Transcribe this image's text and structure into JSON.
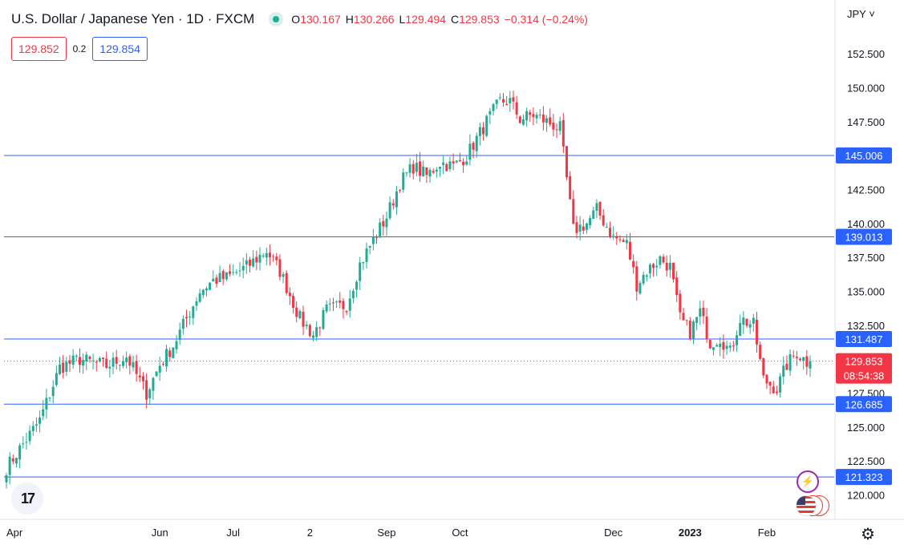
{
  "header": {
    "title": "U.S. Dollar / Japanese Yen · 1D · FXCM",
    "ohlc": [
      {
        "k": "O",
        "v": "130.167"
      },
      {
        "k": "H",
        "v": "130.266"
      },
      {
        "k": "L",
        "v": "129.494"
      },
      {
        "k": "C",
        "v": "129.853"
      },
      {
        "k": "",
        "v": "−0.314 (−0.24%)"
      }
    ]
  },
  "quotes": {
    "sell": "129.852",
    "spread": "0.2",
    "buy": "129.854"
  },
  "currency_label": "JPY ˅",
  "icons": {
    "logo": "tradingview-logo-icon",
    "settings": "gear-icon",
    "events": "lightning-icon",
    "flag": "us-flag-icon"
  },
  "colors": {
    "up": "#22ab94",
    "down": "#f23645",
    "line": "#2962ff",
    "axis_text": "#131722"
  },
  "chart_data": {
    "type": "candlestick",
    "symbol": "USDJPY",
    "interval": "1D",
    "y_ticks": [
      120,
      122.5,
      125,
      127.5,
      130,
      132.5,
      135,
      137.5,
      140,
      142.5,
      145,
      147.5,
      150,
      152.5
    ],
    "y_tick_labels": [
      "120.000",
      "122.500",
      "125.000",
      "127.500",
      "",
      "132.500",
      "135.000",
      "137.500",
      "140.000",
      "142.500",
      "",
      "147.500",
      "150.000",
      "152.500"
    ],
    "ylim": [
      118.2,
      154.1
    ],
    "x_labels": [
      "Apr",
      "Jun",
      "Jul",
      "2",
      "Sep",
      "Oct",
      "Dec",
      "2023",
      "Feb"
    ],
    "x_label_index": [
      0,
      46,
      68,
      91,
      114,
      136,
      182,
      205,
      228
    ],
    "horizontal_levels": [
      145.006,
      139.013,
      131.487,
      126.685,
      121.323
    ],
    "horizontal_level_labels": [
      "145.006",
      "139.013",
      "131.487",
      "126.685",
      "121.323"
    ],
    "last_price": 129.853,
    "last_price_label": "129.853",
    "countdown": "08:54:38",
    "anchors": [
      [
        0,
        122.0
      ],
      [
        10,
        125.5
      ],
      [
        16,
        129.4
      ],
      [
        22,
        130.0
      ],
      [
        30,
        129.5
      ],
      [
        36,
        130.2
      ],
      [
        42,
        127.5
      ],
      [
        46,
        129.6
      ],
      [
        50,
        131.0
      ],
      [
        58,
        135.0
      ],
      [
        62,
        135.8
      ],
      [
        66,
        136.0
      ],
      [
        72,
        136.8
      ],
      [
        78,
        138.0
      ],
      [
        82,
        136.5
      ],
      [
        88,
        133.0
      ],
      [
        92,
        131.8
      ],
      [
        96,
        133.6
      ],
      [
        102,
        134.0
      ],
      [
        106,
        137.0
      ],
      [
        110,
        138.8
      ],
      [
        114,
        140.5
      ],
      [
        118,
        143.0
      ],
      [
        122,
        144.2
      ],
      [
        126,
        143.5
      ],
      [
        130,
        144.5
      ],
      [
        134,
        144.2
      ],
      [
        138,
        145.0
      ],
      [
        144,
        147.5
      ],
      [
        148,
        149.0
      ],
      [
        151,
        149.0
      ],
      [
        154,
        147.7
      ],
      [
        158,
        148.0
      ],
      [
        162,
        147.5
      ],
      [
        166,
        147.0
      ],
      [
        170,
        139.5
      ],
      [
        174,
        140.0
      ],
      [
        177,
        141.0
      ],
      [
        182,
        139.0
      ],
      [
        186,
        138.5
      ],
      [
        189,
        135.5
      ],
      [
        192,
        136.5
      ],
      [
        196,
        137.4
      ],
      [
        199,
        136.8
      ],
      [
        202,
        133.0
      ],
      [
        205,
        132.0
      ],
      [
        208,
        133.5
      ],
      [
        211,
        131.2
      ],
      [
        214,
        131.6
      ],
      [
        217,
        130.5
      ],
      [
        220,
        133.0
      ],
      [
        224,
        132.5
      ],
      [
        227,
        128.5
      ],
      [
        231,
        127.8
      ],
      [
        234,
        129.6
      ],
      [
        237,
        130.5
      ],
      [
        240,
        129.8
      ],
      [
        241,
        129.85
      ]
    ]
  }
}
